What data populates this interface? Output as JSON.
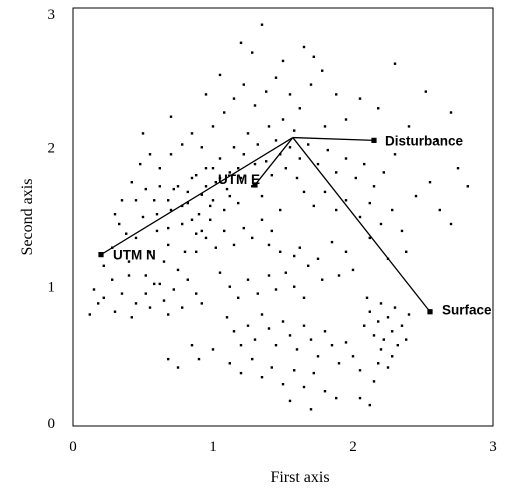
{
  "chart_data": {
    "type": "scatter",
    "xlabel": "First axis",
    "ylabel": "Second axis",
    "xlim": [
      0,
      3
    ],
    "ylim": [
      0,
      3
    ],
    "xticks": [
      "0",
      "1",
      "2",
      "3"
    ],
    "yticks": [
      "0",
      "1",
      "2",
      "3"
    ],
    "grid": false,
    "points": [
      [
        0.22,
        1.15
      ],
      [
        0.28,
        1.28
      ],
      [
        0.33,
        1.45
      ],
      [
        0.4,
        1.18
      ],
      [
        0.45,
        1.35
      ],
      [
        0.5,
        1.5
      ],
      [
        0.52,
        1.08
      ],
      [
        0.55,
        1.25
      ],
      [
        0.58,
        1.62
      ],
      [
        0.6,
        1.4
      ],
      [
        0.62,
        1.02
      ],
      [
        0.65,
        1.18
      ],
      [
        0.68,
        1.3
      ],
      [
        0.7,
        1.55
      ],
      [
        0.72,
        1.7
      ],
      [
        0.75,
        1.12
      ],
      [
        0.78,
        1.45
      ],
      [
        0.8,
        1.25
      ],
      [
        0.82,
        1.6
      ],
      [
        0.85,
        1.78
      ],
      [
        0.88,
        1.38
      ],
      [
        0.9,
        1.52
      ],
      [
        0.92,
        1.66
      ],
      [
        0.95,
        1.85
      ],
      [
        0.98,
        1.48
      ],
      [
        1.0,
        1.62
      ],
      [
        1.02,
        1.75
      ],
      [
        1.05,
        1.92
      ],
      [
        1.08,
        1.55
      ],
      [
        1.1,
        1.7
      ],
      [
        1.12,
        1.82
      ],
      [
        1.15,
        2.0
      ],
      [
        1.18,
        1.6
      ],
      [
        1.2,
        1.78
      ],
      [
        1.22,
        1.95
      ],
      [
        1.25,
        2.1
      ],
      [
        1.28,
        1.72
      ],
      [
        1.3,
        1.88
      ],
      [
        1.32,
        2.02
      ],
      [
        1.35,
        1.65
      ],
      [
        1.38,
        1.9
      ],
      [
        1.4,
        2.15
      ],
      [
        1.42,
        1.8
      ],
      [
        1.45,
        2.05
      ],
      [
        1.48,
        1.95
      ],
      [
        1.5,
        2.2
      ],
      [
        1.52,
        1.85
      ],
      [
        1.55,
        2.0
      ],
      [
        1.58,
        2.12
      ],
      [
        1.6,
        1.78
      ],
      [
        0.35,
        1.62
      ],
      [
        0.42,
        1.75
      ],
      [
        0.48,
        1.88
      ],
      [
        0.55,
        1.95
      ],
      [
        0.62,
        1.85
      ],
      [
        0.7,
        1.95
      ],
      [
        0.78,
        2.02
      ],
      [
        0.85,
        2.1
      ],
      [
        0.92,
        2.0
      ],
      [
        1.0,
        2.15
      ],
      [
        1.08,
        2.25
      ],
      [
        1.15,
        2.35
      ],
      [
        1.22,
        2.45
      ],
      [
        1.3,
        2.3
      ],
      [
        1.38,
        2.4
      ],
      [
        1.45,
        2.5
      ],
      [
        1.55,
        2.38
      ],
      [
        1.62,
        2.28
      ],
      [
        1.7,
        2.45
      ],
      [
        1.78,
        2.55
      ],
      [
        1.2,
        2.75
      ],
      [
        1.28,
        2.68
      ],
      [
        1.35,
        2.88
      ],
      [
        1.5,
        2.62
      ],
      [
        1.65,
        2.72
      ],
      [
        1.72,
        2.65
      ],
      [
        0.95,
        2.38
      ],
      [
        1.05,
        2.52
      ],
      [
        0.7,
        2.22
      ],
      [
        0.5,
        2.1
      ],
      [
        1.62,
        1.92
      ],
      [
        1.68,
        2.02
      ],
      [
        1.75,
        1.88
      ],
      [
        1.82,
        1.98
      ],
      [
        1.88,
        1.82
      ],
      [
        1.95,
        1.92
      ],
      [
        2.02,
        1.78
      ],
      [
        2.08,
        1.88
      ],
      [
        2.15,
        1.72
      ],
      [
        2.22,
        1.82
      ],
      [
        1.65,
        1.68
      ],
      [
        1.72,
        1.58
      ],
      [
        1.8,
        1.68
      ],
      [
        1.88,
        1.55
      ],
      [
        1.95,
        1.62
      ],
      [
        2.05,
        1.5
      ],
      [
        2.12,
        1.6
      ],
      [
        2.2,
        1.45
      ],
      [
        2.28,
        1.55
      ],
      [
        2.35,
        1.4
      ],
      [
        2.45,
        1.65
      ],
      [
        2.55,
        1.75
      ],
      [
        2.62,
        1.55
      ],
      [
        2.7,
        1.45
      ],
      [
        2.75,
        1.85
      ],
      [
        2.82,
        1.72
      ],
      [
        2.6,
        2.05
      ],
      [
        2.7,
        2.25
      ],
      [
        2.52,
        2.4
      ],
      [
        2.4,
        2.15
      ],
      [
        2.3,
        1.95
      ],
      [
        2.18,
        2.28
      ],
      [
        2.05,
        2.35
      ],
      [
        1.95,
        2.2
      ],
      [
        1.88,
        2.38
      ],
      [
        1.8,
        2.15
      ],
      [
        2.3,
        2.6
      ],
      [
        2.12,
        1.35
      ],
      [
        2.25,
        1.2
      ],
      [
        2.38,
        1.25
      ],
      [
        0.15,
        0.98
      ],
      [
        0.22,
        0.92
      ],
      [
        0.28,
        1.05
      ],
      [
        0.35,
        0.95
      ],
      [
        0.4,
        1.08
      ],
      [
        0.45,
        0.88
      ],
      [
        0.52,
        0.95
      ],
      [
        0.58,
        1.02
      ],
      [
        0.65,
        0.9
      ],
      [
        0.72,
        0.98
      ],
      [
        0.78,
        0.85
      ],
      [
        0.82,
        1.05
      ],
      [
        0.88,
        0.95
      ],
      [
        0.12,
        0.8
      ],
      [
        0.18,
        0.88
      ],
      [
        0.3,
        0.82
      ],
      [
        0.42,
        0.78
      ],
      [
        0.55,
        0.85
      ],
      [
        0.68,
        0.8
      ],
      [
        0.92,
        0.88
      ],
      [
        1.05,
        1.1
      ],
      [
        1.12,
        1.0
      ],
      [
        1.18,
        0.92
      ],
      [
        1.25,
        1.05
      ],
      [
        1.32,
        0.95
      ],
      [
        1.4,
        1.08
      ],
      [
        1.45,
        0.98
      ],
      [
        1.52,
        1.1
      ],
      [
        1.58,
        1.0
      ],
      [
        1.65,
        0.92
      ],
      [
        1.1,
        0.78
      ],
      [
        1.15,
        0.68
      ],
      [
        1.2,
        0.58
      ],
      [
        1.25,
        0.72
      ],
      [
        1.3,
        0.62
      ],
      [
        1.35,
        0.8
      ],
      [
        1.4,
        0.7
      ],
      [
        1.45,
        0.58
      ],
      [
        1.5,
        0.75
      ],
      [
        1.55,
        0.65
      ],
      [
        1.6,
        0.55
      ],
      [
        1.65,
        0.72
      ],
      [
        1.7,
        0.62
      ],
      [
        1.75,
        0.5
      ],
      [
        1.8,
        0.68
      ],
      [
        1.85,
        0.58
      ],
      [
        1.9,
        0.45
      ],
      [
        1.95,
        0.6
      ],
      [
        2.0,
        0.5
      ],
      [
        2.05,
        0.4
      ],
      [
        1.12,
        0.45
      ],
      [
        1.2,
        0.38
      ],
      [
        1.28,
        0.48
      ],
      [
        1.35,
        0.35
      ],
      [
        1.42,
        0.42
      ],
      [
        1.5,
        0.3
      ],
      [
        1.58,
        0.4
      ],
      [
        1.65,
        0.28
      ],
      [
        1.72,
        0.38
      ],
      [
        1.8,
        0.25
      ],
      [
        2.08,
        0.72
      ],
      [
        2.12,
        0.82
      ],
      [
        2.15,
        0.65
      ],
      [
        2.18,
        0.75
      ],
      [
        2.22,
        0.62
      ],
      [
        2.25,
        0.78
      ],
      [
        2.28,
        0.68
      ],
      [
        2.32,
        0.58
      ],
      [
        2.35,
        0.72
      ],
      [
        2.38,
        0.62
      ],
      [
        2.1,
        0.92
      ],
      [
        2.2,
        0.88
      ],
      [
        2.3,
        0.85
      ],
      [
        2.4,
        0.8
      ],
      [
        2.05,
        0.2
      ],
      [
        2.15,
        0.32
      ],
      [
        2.25,
        0.42
      ],
      [
        1.88,
        0.2
      ],
      [
        0.68,
        0.48
      ],
      [
        0.75,
        0.42
      ],
      [
        0.9,
        0.48
      ],
      [
        1.0,
        0.55
      ],
      [
        0.85,
        0.58
      ],
      [
        1.55,
        0.18
      ],
      [
        1.7,
        0.12
      ],
      [
        2.12,
        0.15
      ],
      [
        2.2,
        0.55
      ],
      [
        2.28,
        0.5
      ],
      [
        2.18,
        0.45
      ],
      [
        1.48,
        1.25
      ],
      [
        1.62,
        1.28
      ],
      [
        1.75,
        1.2
      ],
      [
        1.85,
        1.32
      ],
      [
        1.95,
        1.25
      ],
      [
        2.0,
        1.12
      ],
      [
        1.9,
        1.08
      ],
      [
        1.78,
        1.05
      ],
      [
        1.68,
        1.15
      ],
      [
        1.58,
        1.22
      ],
      [
        1.4,
        1.3
      ],
      [
        0.62,
        1.72
      ],
      [
        0.68,
        1.62
      ],
      [
        0.75,
        1.72
      ],
      [
        0.82,
        1.68
      ],
      [
        0.88,
        1.8
      ],
      [
        0.95,
        1.72
      ],
      [
        1.0,
        1.85
      ],
      [
        1.05,
        1.78
      ],
      [
        1.12,
        1.65
      ],
      [
        1.18,
        1.85
      ],
      [
        0.88,
        1.25
      ],
      [
        0.95,
        1.35
      ],
      [
        1.02,
        1.28
      ],
      [
        1.08,
        1.4
      ],
      [
        1.15,
        1.3
      ],
      [
        1.22,
        1.42
      ],
      [
        1.28,
        1.35
      ],
      [
        1.35,
        1.48
      ],
      [
        1.42,
        1.4
      ],
      [
        1.48,
        1.55
      ],
      [
        0.3,
        1.52
      ],
      [
        0.38,
        1.38
      ],
      [
        0.45,
        1.62
      ],
      [
        0.52,
        1.7
      ],
      [
        0.6,
        1.52
      ],
      [
        0.68,
        1.42
      ],
      [
        0.78,
        1.58
      ],
      [
        0.85,
        1.48
      ],
      [
        0.92,
        1.4
      ],
      [
        0.98,
        1.58
      ]
    ],
    "vectors": [
      {
        "name": "UTM N",
        "origin": [
          1.57,
          2.07
        ],
        "end": [
          0.2,
          1.23
        ]
      },
      {
        "name": "UTM E",
        "origin": [
          1.57,
          2.07
        ],
        "end": [
          1.3,
          1.73
        ]
      },
      {
        "name": "Disturbance",
        "origin": [
          1.57,
          2.07
        ],
        "end": [
          2.15,
          2.05
        ]
      },
      {
        "name": "Surface",
        "origin": [
          1.57,
          2.07
        ],
        "end": [
          2.55,
          0.82
        ]
      }
    ]
  }
}
